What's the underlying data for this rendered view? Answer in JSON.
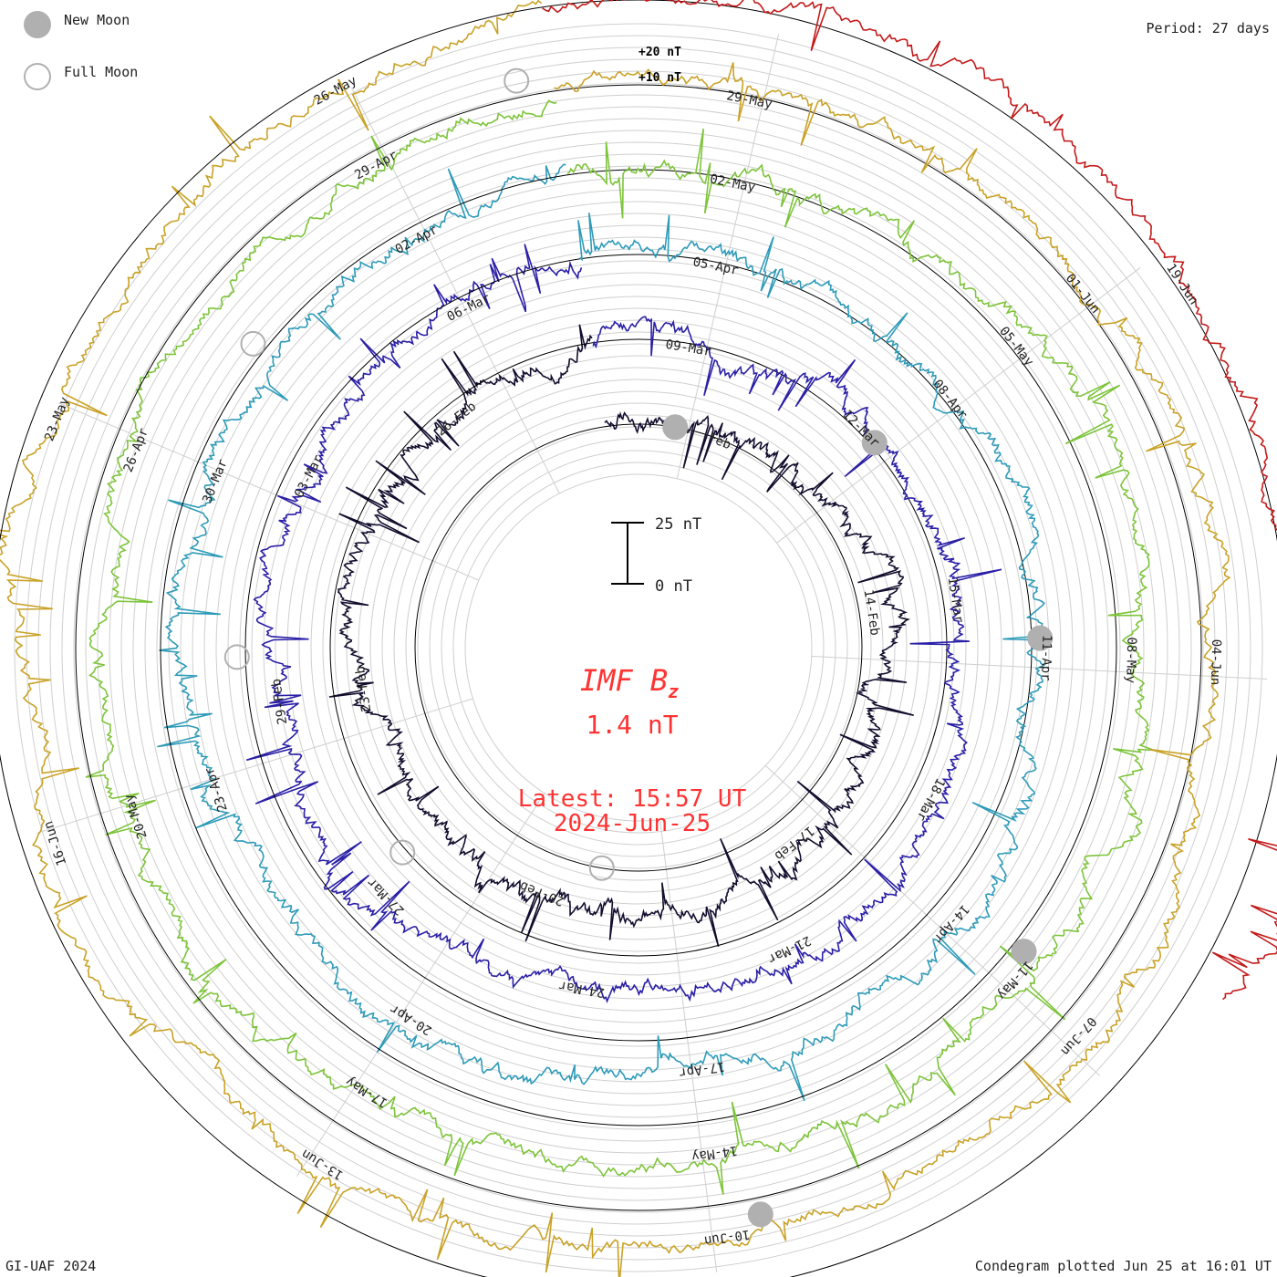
{
  "legend": {
    "new_moon": "New Moon",
    "full_moon": "Full Moon",
    "new_moon_color": "#b0b0b0",
    "full_moon_color": "#b0b0b0"
  },
  "period_label": "Period: 27 days",
  "credit": "GI-UAF 2024",
  "plotted_note": "Condegram plotted Jun 25 at 16:01 UT",
  "chart_data": {
    "type": "line",
    "title": "IMF B",
    "title_subscript": "z",
    "current_value": "1.4 nT",
    "latest_time": "Latest: 15:57 UT",
    "latest_date": "2024-Jun-25",
    "title_color": "#ff3333",
    "scale_bar": {
      "top_label": "25 nT",
      "bottom_label": "0 nT",
      "span_nT": 25
    },
    "reference_labels": [
      "+20 nT",
      "+10 nT"
    ],
    "units": "nT",
    "period_days": 27,
    "grid": true,
    "cycles": [
      {
        "color": "#140d2e",
        "date_labels": [
          "Feb",
          "14-Feb",
          "17-Feb",
          "20-Feb",
          "23-Feb",
          "26-Feb"
        ]
      },
      {
        "color": "#2a1fa6",
        "date_labels": [
          "09-Mar",
          "12-Mar",
          "15-Mar",
          "18-Mar",
          "21-Mar",
          "24-Mar",
          "27-Mar",
          "29-Feb",
          "03-Mar",
          "06-Mar"
        ]
      },
      {
        "color": "#2e9bb8",
        "date_labels": [
          "05-Apr",
          "08-Apr",
          "11-Apr",
          "14-Apr",
          "17-Apr",
          "20-Apr",
          "23-Apr",
          "30-Mar",
          "02-Apr"
        ]
      },
      {
        "color": "#7dc43a",
        "date_labels": [
          "02-May",
          "05-May",
          "08-May",
          "11-May",
          "14-May",
          "17-May",
          "20-May",
          "26-Apr",
          "29-Apr"
        ]
      },
      {
        "color": "#c9a227",
        "date_labels": [
          "29-May",
          "01-Jun",
          "04-Jun",
          "07-Jun",
          "10-Jun",
          "13-Jun",
          "16-Jun",
          "23-May",
          "26-May"
        ]
      },
      {
        "color": "#c41a1a",
        "date_labels": [
          "19-Jun"
        ]
      }
    ],
    "moon_phases": {
      "new": [
        "Feb",
        "Mar",
        "Apr",
        "May",
        "Jun"
      ],
      "full": [
        "Feb",
        "Mar",
        "Apr",
        "May",
        "Jun"
      ]
    }
  }
}
